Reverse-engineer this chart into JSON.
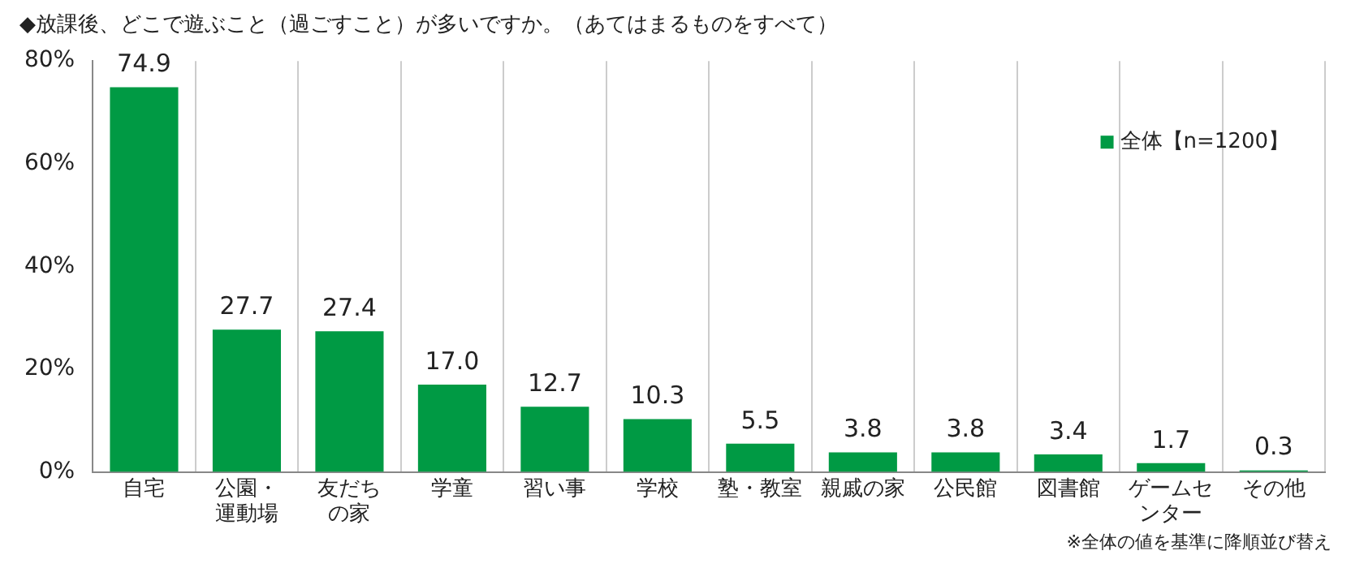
{
  "chart_data": {
    "type": "bar",
    "title": "◆放課後、どこで遊ぶこと（過ごすこと）が多いですか。（あてはまるものをすべて）",
    "categories": [
      "自宅",
      "公園・運動場",
      "友だちの家",
      "学童",
      "習い事",
      "学校",
      "塾・教室",
      "親戚の家",
      "公民館",
      "図書館",
      "ゲームセンター",
      "その他"
    ],
    "series": [
      {
        "name": "全体【n=1200】",
        "color": "#009a44",
        "values": [
          74.9,
          27.7,
          27.4,
          17.0,
          12.7,
          10.3,
          5.5,
          3.8,
          3.8,
          3.4,
          1.7,
          0.3
        ],
        "value_labels": [
          "74.9",
          "27.7",
          "27.4",
          "17.0",
          "12.7",
          "10.3",
          "5.5",
          "3.8",
          "3.8",
          "3.4",
          "1.7",
          "0.3"
        ]
      }
    ],
    "ylim": [
      0,
      80
    ],
    "yticks": [
      {
        "value": 0,
        "label": "0%"
      },
      {
        "value": 20,
        "label": "20%"
      },
      {
        "value": 40,
        "label": "40%"
      },
      {
        "value": 60,
        "label": "60%"
      },
      {
        "value": 80,
        "label": "80%"
      }
    ],
    "grid": "x",
    "legend": "right",
    "annotations": [
      "※全体の値を基準に降順並び替え"
    ]
  }
}
